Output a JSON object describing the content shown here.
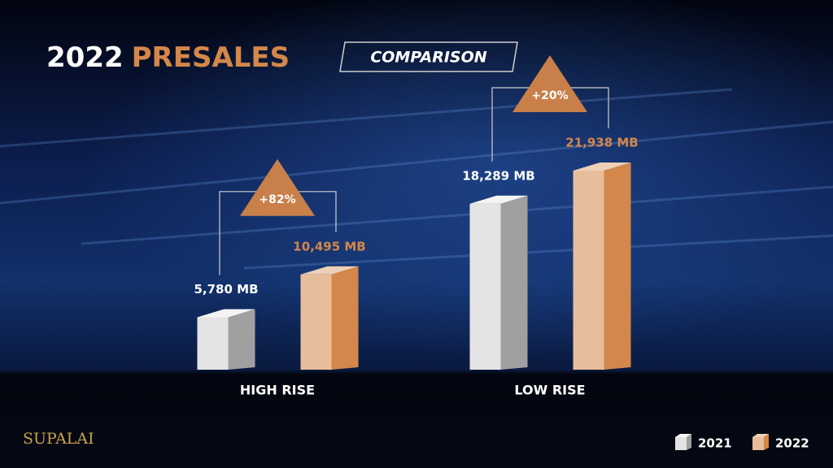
{
  "chart_data": {
    "type": "bar3d",
    "title": [
      "2022",
      "PRESALES"
    ],
    "subtitle": "COMPARISON",
    "brand": "SUPALAI",
    "categories": [
      "HIGH RISE",
      "LOW RISE"
    ],
    "series": [
      {
        "name": "2021",
        "color": "#e4e4e4",
        "values": [
          5780,
          18289
        ],
        "value_labels": [
          "5,780 MB",
          "18,289 MB"
        ]
      },
      {
        "name": "2022",
        "color": "#d4874a",
        "values": [
          10495,
          21938
        ],
        "value_labels": [
          "10,495 MB",
          "21,938 MB"
        ]
      }
    ],
    "annotations": [
      "+82%",
      "+20%"
    ]
  }
}
